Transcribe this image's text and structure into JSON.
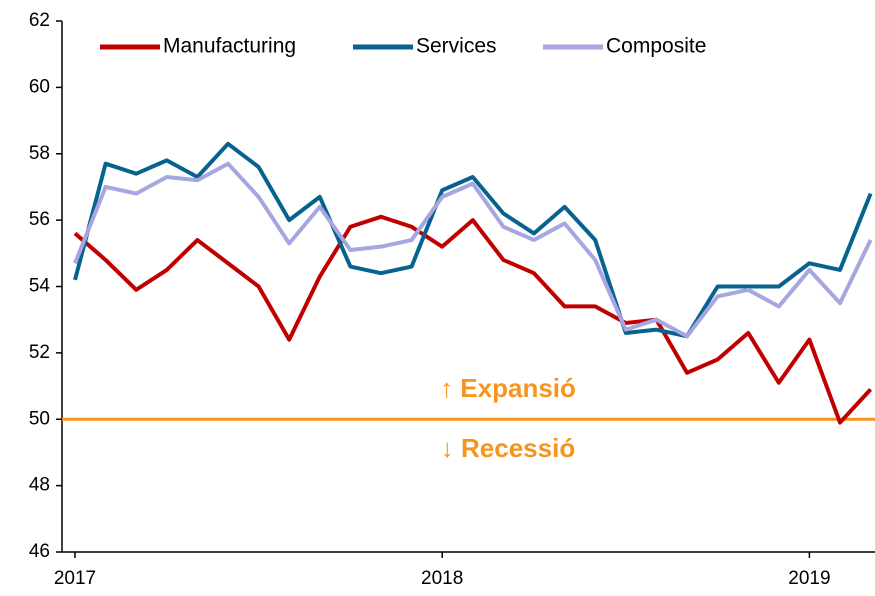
{
  "chart_data": {
    "type": "line",
    "categories": [
      "2017",
      null,
      null,
      null,
      null,
      null,
      null,
      null,
      null,
      null,
      null,
      null,
      "2018",
      null,
      null,
      null,
      null,
      null,
      null,
      null,
      null,
      null,
      null,
      null,
      "2019",
      null,
      null
    ],
    "series": [
      {
        "name": "Manufacturing",
        "color": "#c00000",
        "values": [
          55.6,
          54.8,
          53.9,
          54.5,
          55.4,
          54.7,
          54.0,
          52.4,
          54.3,
          55.8,
          56.1,
          55.8,
          55.2,
          56.0,
          54.8,
          54.4,
          53.4,
          53.4,
          52.9,
          53.0,
          51.4,
          51.8,
          52.6,
          51.1,
          52.4,
          49.9,
          50.9
        ]
      },
      {
        "name": "Services",
        "color": "#08628f",
        "values": [
          54.2,
          57.7,
          57.4,
          57.8,
          57.3,
          58.3,
          57.6,
          56.0,
          56.7,
          54.6,
          54.4,
          54.6,
          56.9,
          57.3,
          56.2,
          55.6,
          56.4,
          55.4,
          52.6,
          52.7,
          52.5,
          54.0,
          54.0,
          54.0,
          54.7,
          54.5,
          56.8
        ]
      },
      {
        "name": "Composite",
        "color": "#a6a6e0",
        "values": [
          54.7,
          57.0,
          56.8,
          57.3,
          57.2,
          57.7,
          56.7,
          55.3,
          56.4,
          55.1,
          55.2,
          55.4,
          56.7,
          57.1,
          55.8,
          55.4,
          55.9,
          54.8,
          52.7,
          53.0,
          52.5,
          53.7,
          53.9,
          53.4,
          54.5,
          53.5,
          55.4
        ]
      }
    ],
    "ylim": [
      46,
      62
    ],
    "yticks": [
      46,
      48,
      50,
      52,
      54,
      56,
      58,
      60,
      62
    ],
    "hline": {
      "value": 50,
      "color": "#f7941d"
    },
    "annotations": [
      "↑ Expansió",
      "↓ Recessió"
    ],
    "legend": "top-left"
  }
}
